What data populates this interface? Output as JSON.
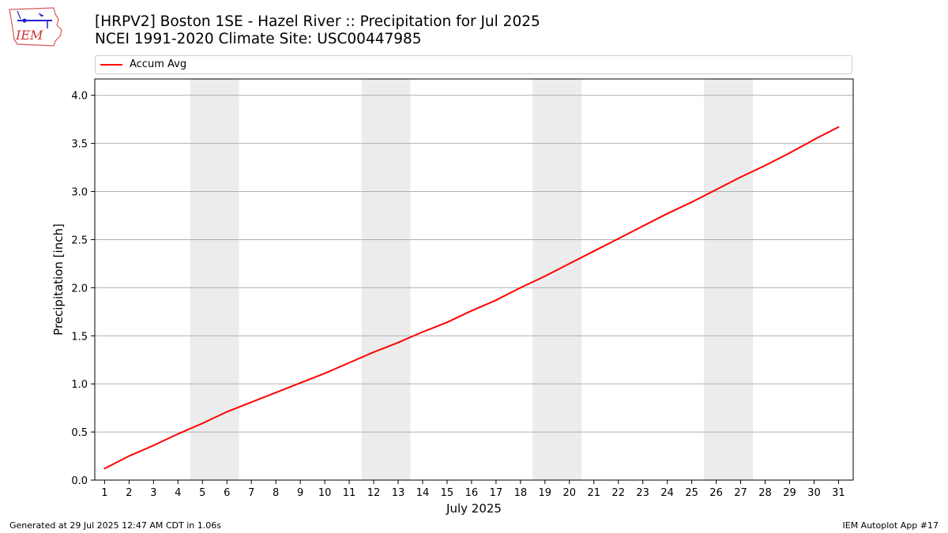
{
  "title": {
    "line1": "[HRPV2] Boston 1SE - Hazel River :: Precipitation for Jul 2025",
    "line2": "NCEI 1991-2020 Climate Site: USC00447985"
  },
  "logo": {
    "text": "IEM"
  },
  "footer": {
    "left": "Generated at 29 Jul 2025 12:47 AM CDT in 1.06s",
    "right": "IEM Autoplot App #17"
  },
  "colors": {
    "series": "#ff0000",
    "weekend_shade": "#ececec",
    "grid": "#b0b0b0"
  },
  "chart_data": {
    "type": "line",
    "xlabel": "July 2025",
    "ylabel": "Precipitation [inch]",
    "x": [
      1,
      2,
      3,
      4,
      5,
      6,
      7,
      8,
      9,
      10,
      11,
      12,
      13,
      14,
      15,
      16,
      17,
      18,
      19,
      20,
      21,
      22,
      23,
      24,
      25,
      26,
      27,
      28,
      29,
      30,
      31
    ],
    "xlim": [
      0.6,
      31.6
    ],
    "ylim": [
      0.0,
      4.17
    ],
    "yticks": [
      0.0,
      0.5,
      1.0,
      1.5,
      2.0,
      2.5,
      3.0,
      3.5,
      4.0
    ],
    "ytick_labels": [
      "0.0",
      "0.5",
      "1.0",
      "1.5",
      "2.0",
      "2.5",
      "3.0",
      "3.5",
      "4.0"
    ],
    "grid": "horizontal",
    "legend_position": "top",
    "shaded_weekends": [
      [
        4.5,
        6.5
      ],
      [
        11.5,
        13.5
      ],
      [
        18.5,
        20.5
      ],
      [
        25.5,
        27.5
      ]
    ],
    "series": [
      {
        "name": "Accum Avg",
        "values": [
          0.12,
          0.25,
          0.36,
          0.48,
          0.59,
          0.71,
          0.81,
          0.91,
          1.01,
          1.11,
          1.22,
          1.33,
          1.43,
          1.54,
          1.64,
          1.76,
          1.87,
          2.0,
          2.12,
          2.25,
          2.38,
          2.51,
          2.64,
          2.77,
          2.89,
          3.02,
          3.15,
          3.27,
          3.4,
          3.54,
          3.67
        ]
      }
    ]
  }
}
